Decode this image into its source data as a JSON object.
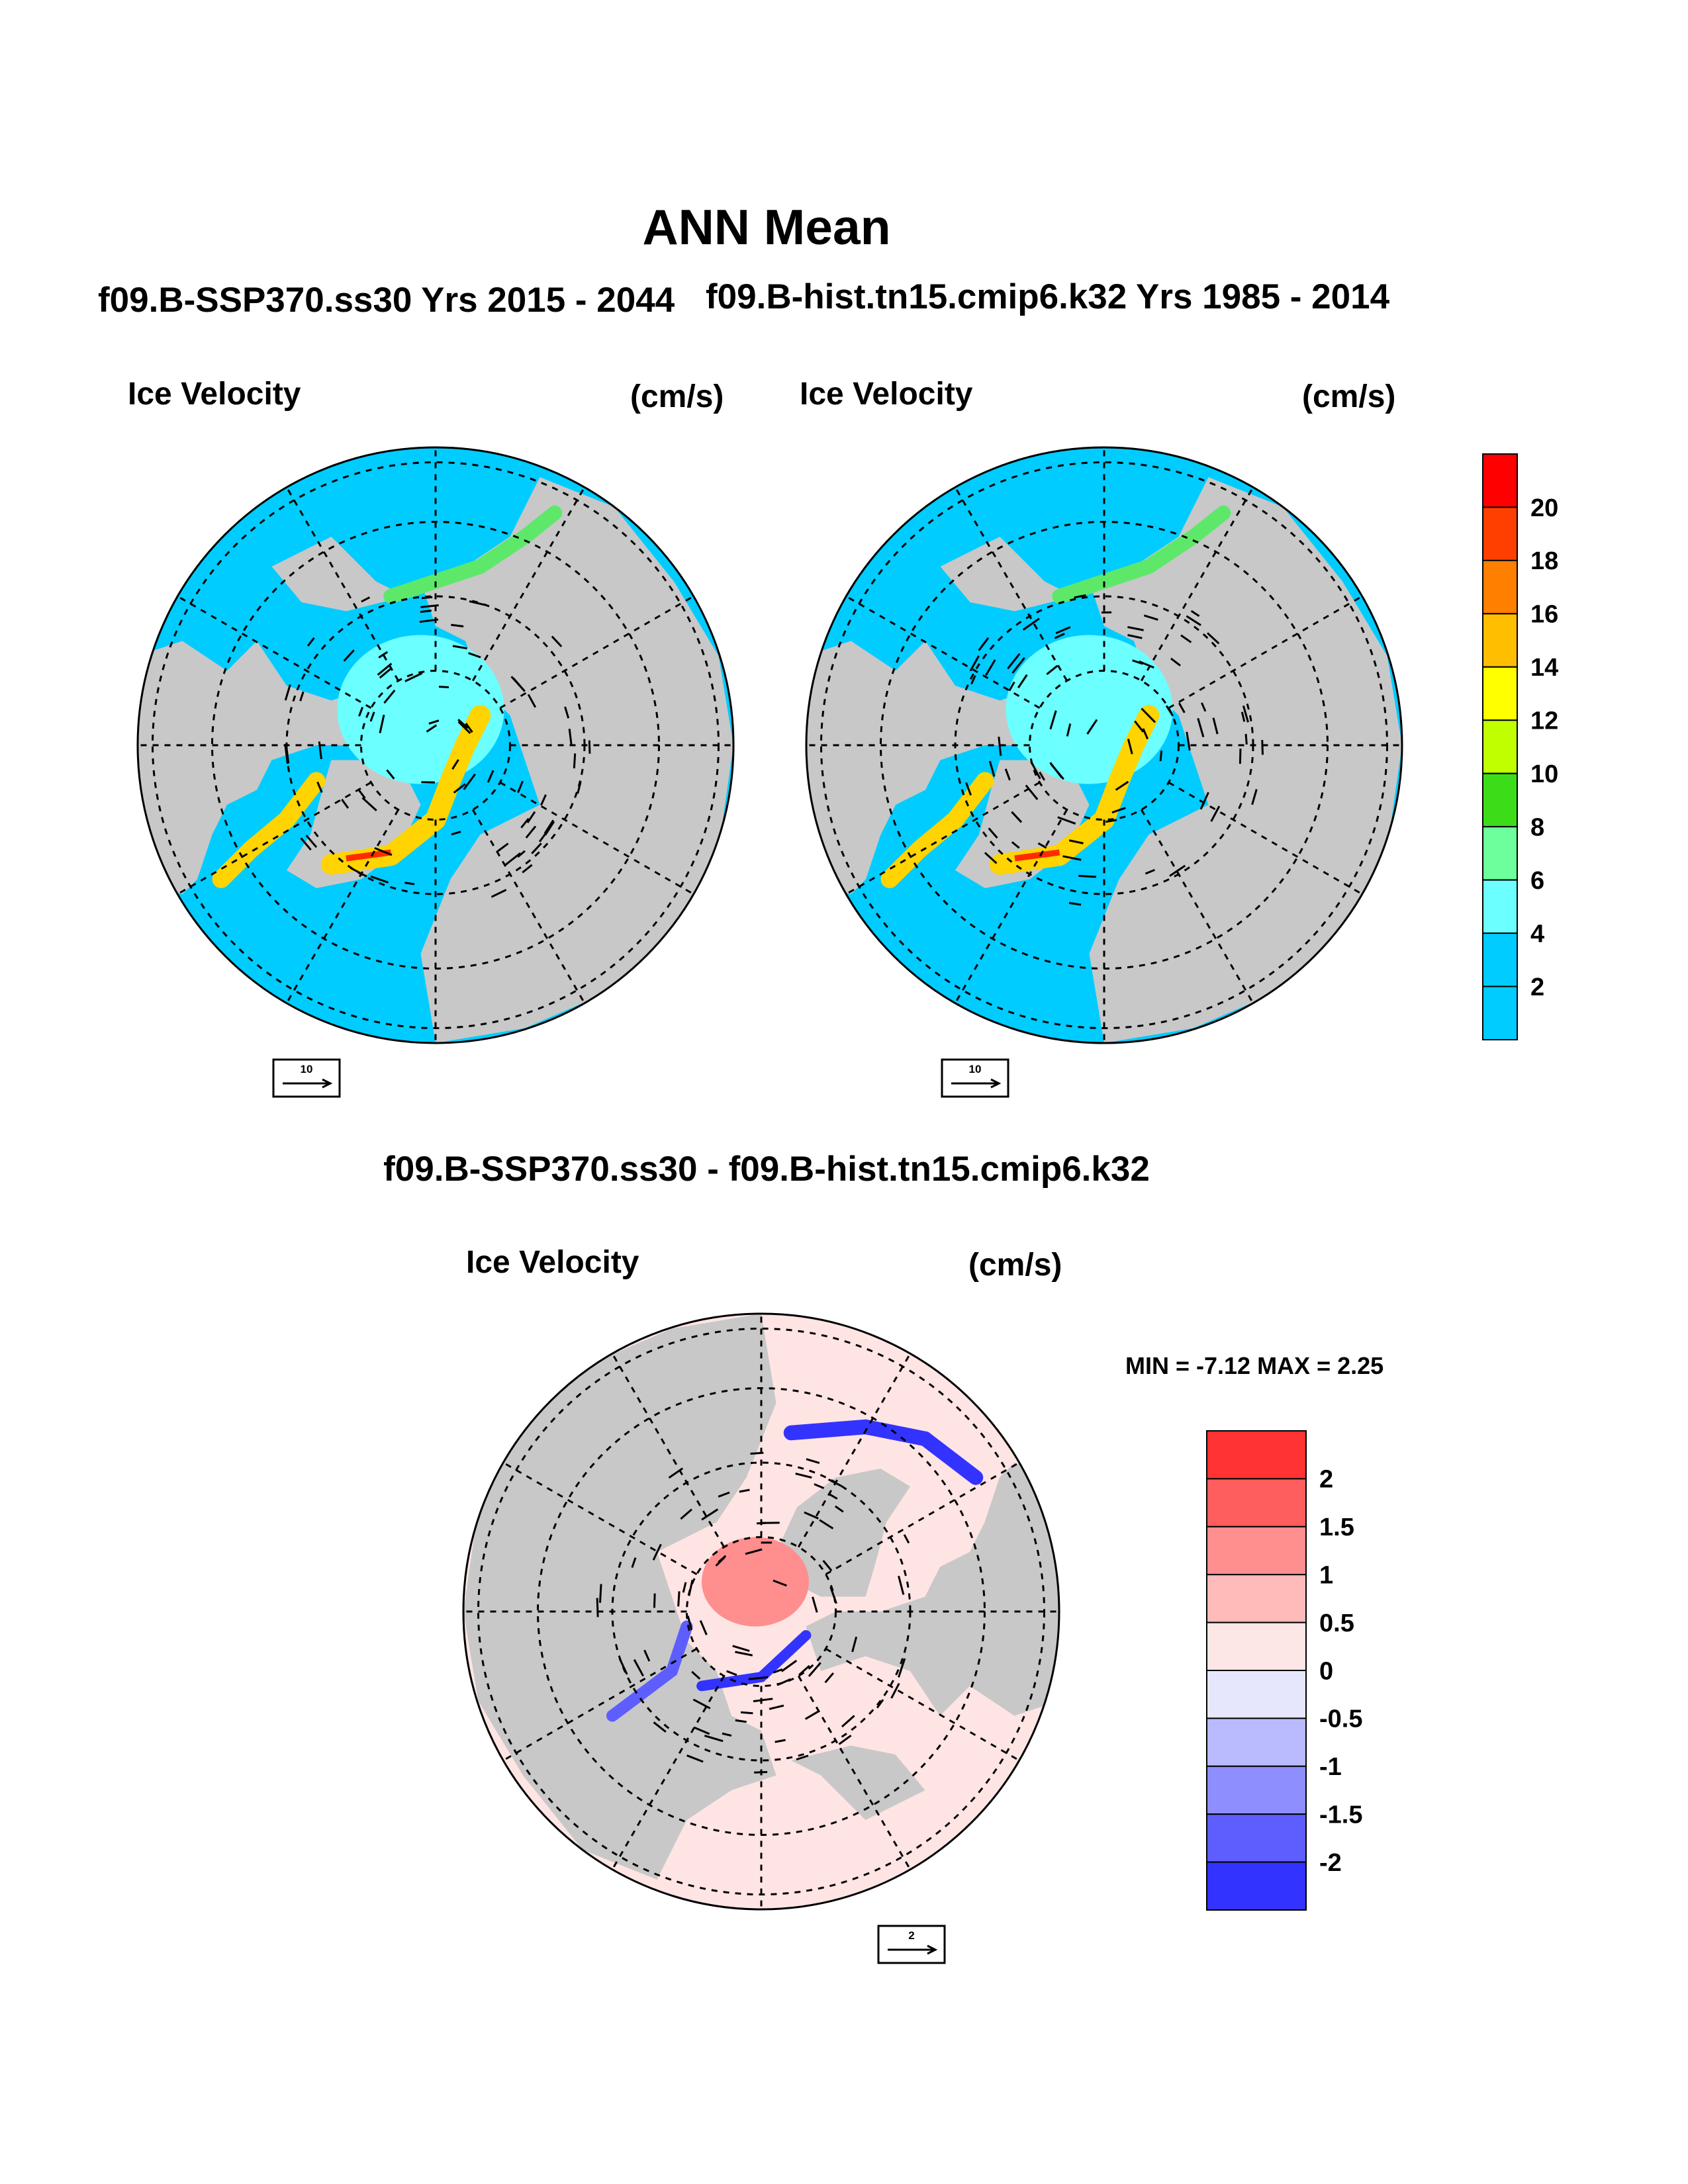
{
  "main_title": "ANN Mean",
  "panels": {
    "left": {
      "title": "f09.B-SSP370.ss30  Yrs 2015 - 2044",
      "variable": "Ice Velocity",
      "units": "(cm/s)",
      "ref_vector_label": "10"
    },
    "right": {
      "title": "f09.B-hist.tn15.cmip6.k32  Yrs 1985 - 2014",
      "variable": "Ice Velocity",
      "units": "(cm/s)",
      "ref_vector_label": "10"
    },
    "difference": {
      "title": "f09.B-SSP370.ss30 - f09.B-hist.tn15.cmip6.k32",
      "variable": "Ice Velocity",
      "units": "(cm/s)",
      "ref_vector_label": "2",
      "min_max_label": "MIN =  -7.12 MAX =   2.25"
    }
  },
  "colorbars": {
    "velocity": {
      "labels": [
        "20",
        "18",
        "16",
        "14",
        "12",
        "10",
        "8",
        "6",
        "4",
        "2"
      ],
      "colors_top_to_bottom": [
        "#ff0000",
        "#ff3f00",
        "#ff7f00",
        "#ffbf00",
        "#ffff00",
        "#c0ff00",
        "#3cdc18",
        "#6cff9c",
        "#6cffff",
        "#00ccff",
        "#00ccff"
      ]
    },
    "difference": {
      "labels": [
        "2",
        "1.5",
        "1",
        "0.5",
        "0",
        "-0.5",
        "-1",
        "-1.5",
        "-2"
      ],
      "colors_top_to_bottom": [
        "#ff3333",
        "#ff5e5e",
        "#ff8e8e",
        "#ffbaba",
        "#fce6e6",
        "#e6e6fc",
        "#babaff",
        "#8e8eff",
        "#5e5eff",
        "#3333ff"
      ]
    }
  },
  "map_colors": {
    "land": "#c8c8c8",
    "ocean_low_velocity": "#00ccff",
    "diff_positive": "#ffe4e4",
    "diff_negative": "#e4e4fc"
  }
}
